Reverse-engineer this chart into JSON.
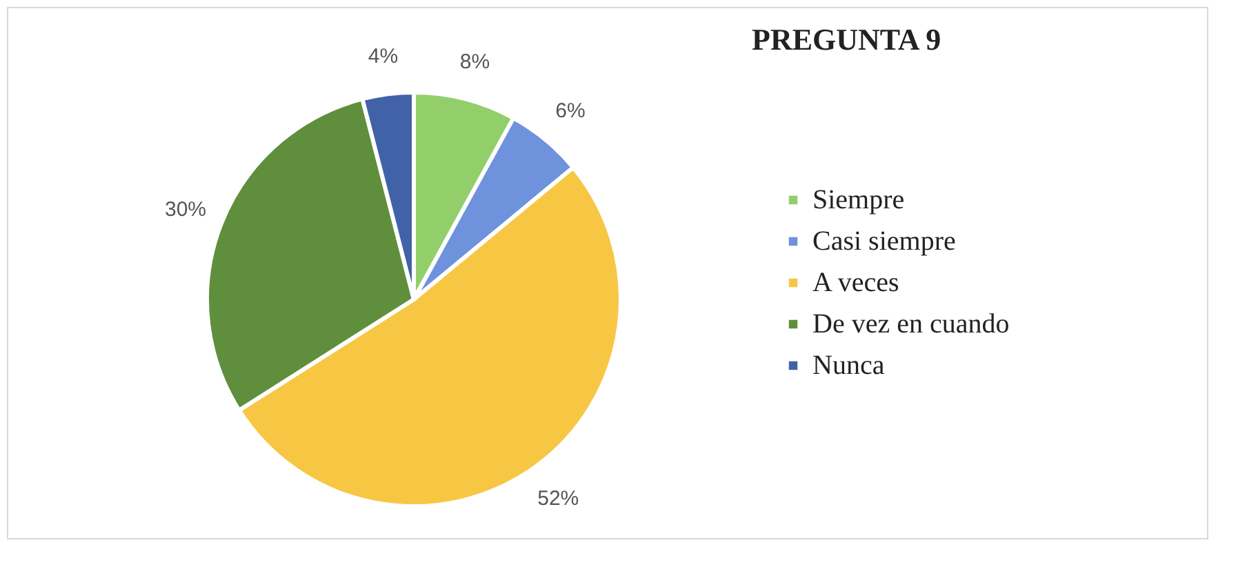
{
  "chart_data": {
    "type": "pie",
    "title": "PREGUNTA 9",
    "categories": [
      "Siempre",
      "Casi siempre",
      "A veces",
      "De vez en cuando",
      "Nunca"
    ],
    "values": [
      8,
      6,
      52,
      30,
      4
    ],
    "value_labels": [
      "8%",
      "6%",
      "52%",
      "30%",
      "4%"
    ],
    "colors": [
      "#92cf6a",
      "#6f92dc",
      "#f7c744",
      "#5f8f3c",
      "#4262a8"
    ],
    "legend": "right"
  }
}
